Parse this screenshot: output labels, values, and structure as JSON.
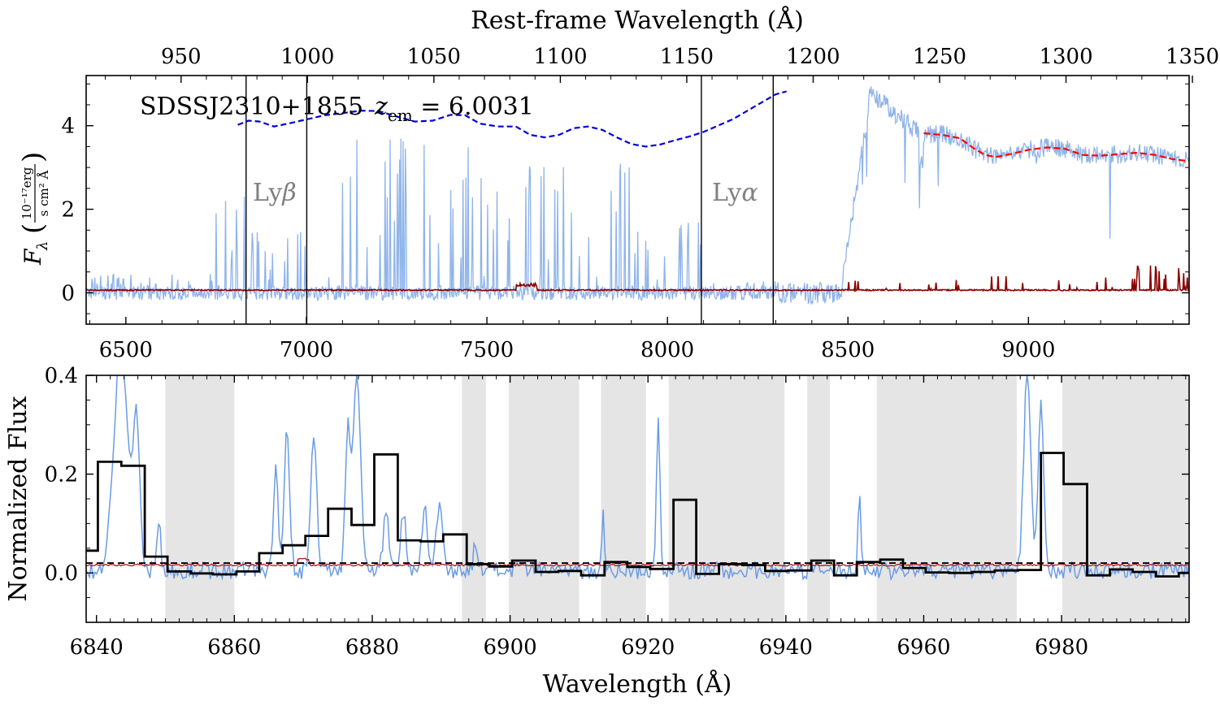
{
  "chart_data": [
    {
      "type": "line",
      "panel": "top",
      "title_top_axis": "Rest-frame Wavelength (Å)",
      "top_axis_ticks": [
        "950",
        "1000",
        "1050",
        "1100",
        "1150",
        "1200",
        "1250",
        "1300",
        "1350"
      ],
      "top_axis_values": [
        950,
        1000,
        1050,
        1100,
        1150,
        1200,
        1250,
        1300,
        1350
      ],
      "ylabel": "F_λ (10^-17 erg / s cm² Å)",
      "ylabel_main": "F",
      "ylabel_sub": "λ",
      "ylabel_num": "10⁻¹⁷erg",
      "ylabel_den": "s cm² Å",
      "xlim": [
        6390,
        9445
      ],
      "ylim": [
        -0.75,
        5.2
      ],
      "x_ticks": [
        "6500",
        "7000",
        "7500",
        "8000",
        "8500",
        "9000"
      ],
      "x_tick_values": [
        6500,
        7000,
        7500,
        8000,
        8500,
        9000
      ],
      "y_ticks": [
        "0",
        "2",
        "4"
      ],
      "y_tick_values": [
        0,
        2,
        4
      ],
      "annotation": "SDSSJ2310+1855 z_em = 6.0031",
      "annotation_name": "SDSSJ2310+1855",
      "annotation_z": "z",
      "annotation_z_sub": "em",
      "annotation_value": " = 6.0031",
      "line_labels": [
        {
          "text": "Lyβ",
          "main": "Ly",
          "greek": "β",
          "x": 6865
        },
        {
          "text": "Lyα",
          "main": "Ly",
          "greek": "α",
          "x": 8010
        }
      ],
      "vertical_lines_x": [
        6833,
        7001,
        8094,
        8293
      ],
      "colors": {
        "flux": "#8fb4ea",
        "error": "#8b0000",
        "continuum_fit": "#ff0000",
        "blue_continuum": "#0000dd"
      },
      "series": [
        {
          "style": "dashed",
          "color": "#0000dd",
          "x": [
            6810,
            6840,
            6870,
            6910,
            6950,
            7000,
            7050,
            7100,
            7150,
            7200,
            7250,
            7300,
            7350,
            7400,
            7440,
            7480,
            7530,
            7580,
            7620,
            7660,
            7700,
            7740,
            7780,
            7820,
            7860,
            7900,
            7940,
            7980,
            8020,
            8060,
            8100,
            8140,
            8180,
            8220,
            8260,
            8300,
            8330
          ],
          "y": [
            4.02,
            4.12,
            4.1,
            3.98,
            4.05,
            4.15,
            4.25,
            4.3,
            4.36,
            4.35,
            4.22,
            4.1,
            4.12,
            4.26,
            4.25,
            4.05,
            3.98,
            3.98,
            3.78,
            3.72,
            3.78,
            3.94,
            3.98,
            3.9,
            3.72,
            3.56,
            3.5,
            3.55,
            3.65,
            3.74,
            3.85,
            4.0,
            4.15,
            4.35,
            4.55,
            4.75,
            4.82
          ]
        },
        {
          "style": "dashed",
          "color": "#ff0000",
          "x": [
            8710,
            8760,
            8810,
            8850,
            8880,
            8910,
            8950,
            9000,
            9050,
            9100,
            9150,
            9200,
            9250,
            9300,
            9350,
            9400,
            9445
          ],
          "y": [
            3.82,
            3.78,
            3.7,
            3.45,
            3.3,
            3.25,
            3.32,
            3.42,
            3.48,
            3.45,
            3.3,
            3.28,
            3.32,
            3.35,
            3.3,
            3.2,
            3.15
          ]
        }
      ]
    },
    {
      "type": "line",
      "panel": "bottom",
      "xlabel": "Wavelength (Å)",
      "ylabel": "Normalized Flux",
      "xlim": [
        6838.5,
        6998.5
      ],
      "ylim": [
        -0.1,
        0.4
      ],
      "x_ticks": [
        "6840",
        "6860",
        "6880",
        "6900",
        "6920",
        "6940",
        "6960",
        "6980"
      ],
      "x_tick_values": [
        6840,
        6860,
        6880,
        6900,
        6920,
        6940,
        6960,
        6980
      ],
      "y_ticks": [
        "0.0",
        "0.2",
        "0.4"
      ],
      "y_tick_values": [
        0.0,
        0.2,
        0.4
      ],
      "dashed_level": 0.02,
      "shaded_regions": [
        [
          6850,
          6860
        ],
        [
          6893,
          6896.5
        ],
        [
          6899.8,
          6910
        ],
        [
          6913.2,
          6919.7
        ],
        [
          6923,
          6939.8
        ],
        [
          6943.1,
          6946.4
        ],
        [
          6953.2,
          6973.5
        ],
        [
          6980.1,
          6998.5
        ]
      ],
      "colors": {
        "flux": "#6a9be6",
        "error": "#b22222",
        "binned": "#000000",
        "shade": "#e5e5e5"
      },
      "series": [
        {
          "style": "step",
          "color": "#000000",
          "x": [
            6838.5,
            6840.2,
            6843.6,
            6847.0,
            6850.3,
            6853.7,
            6856.9,
            6860.3,
            6863.6,
            6867.0,
            6870.3,
            6873.6,
            6877.0,
            6880.3,
            6883.7,
            6887.0,
            6890.3,
            6893.7,
            6897.0,
            6900.3,
            6903.7,
            6907.0,
            6910.3,
            6913.7,
            6917.0,
            6920.3,
            6923.7,
            6927.0,
            6930.3,
            6933.7,
            6937.0,
            6940.3,
            6943.7,
            6947.0,
            6950.3,
            6953.7,
            6957.0,
            6960.3,
            6963.7,
            6967.0,
            6970.3,
            6973.7,
            6977.0,
            6980.3,
            6983.7,
            6987.0,
            6990.3,
            6993.7,
            6997.0,
            6998.5
          ],
          "y": [
            0.045,
            0.225,
            0.217,
            0.033,
            0.003,
            -0.001,
            -0.003,
            0.003,
            0.04,
            0.056,
            0.075,
            0.13,
            0.097,
            0.24,
            0.066,
            0.064,
            0.078,
            0.018,
            0.013,
            0.025,
            0.002,
            0.004,
            -0.005,
            0.022,
            0.012,
            0.008,
            0.148,
            -0.002,
            0.018,
            0.016,
            0.004,
            0.005,
            0.025,
            -0.005,
            0.022,
            0.027,
            0.01,
            0.001,
            0.0,
            0.002,
            0.005,
            0.006,
            0.243,
            0.18,
            -0.005,
            0.007,
            0.002,
            -0.007,
            0.0,
            0.001
          ]
        }
      ]
    }
  ]
}
